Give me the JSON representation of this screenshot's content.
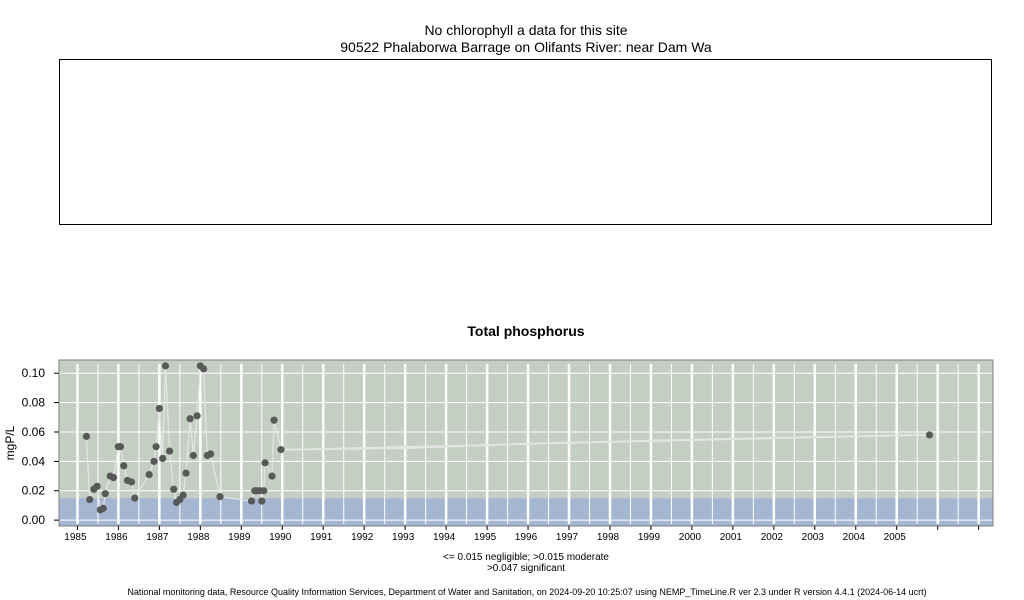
{
  "header": {
    "line1": "No chlorophyll a  data for this site",
    "line2": "90522 Phalaborwa Barrage on Olifants River: near Dam Wa"
  },
  "chart_data": {
    "type": "scatter",
    "title": "Total phosphorus",
    "ylabel": "mgP/L",
    "xlabel": "",
    "xlim": [
      1984.55,
      2007.35
    ],
    "ylim": [
      -0.004,
      0.109
    ],
    "yticks": [
      0.0,
      0.02,
      0.04,
      0.06,
      0.08,
      0.1
    ],
    "ytick_labels": [
      "0.00",
      "0.02",
      "0.04",
      "0.06",
      "0.08",
      "0.10"
    ],
    "xtick_labels": [
      "1985",
      "1986",
      "1987",
      "1988",
      "1989",
      "1990",
      "1991",
      "1992",
      "1993",
      "1994",
      "1995",
      "1996",
      "1997",
      "1998",
      "1999",
      "2000",
      "2001",
      "2002",
      "2003",
      "2004",
      "2005"
    ],
    "grid": true,
    "bands": [
      {
        "label": "negligible",
        "from": -0.004,
        "to": 0.015,
        "color": "#a5b6d3"
      },
      {
        "label": "moderate/significant",
        "from": 0.015,
        "to": 0.109,
        "color": "#c4ceC2"
      }
    ],
    "series": [
      {
        "points": [
          [
            1985.22,
            0.057
          ],
          [
            1985.3,
            0.014
          ],
          [
            1985.4,
            0.021
          ],
          [
            1985.48,
            0.023
          ],
          [
            1985.56,
            0.007
          ],
          [
            1985.63,
            0.008
          ],
          [
            1985.68,
            0.018
          ],
          [
            1985.8,
            0.03
          ],
          [
            1985.88,
            0.029
          ],
          [
            1986.0,
            0.05
          ],
          [
            1986.05,
            0.05
          ],
          [
            1986.13,
            0.037
          ],
          [
            1986.22,
            0.027
          ],
          [
            1986.32,
            0.026
          ],
          [
            1986.4,
            0.015
          ],
          [
            1986.75,
            0.031
          ],
          [
            1986.87,
            0.04
          ],
          [
            1986.92,
            0.05
          ],
          [
            1987.0,
            0.076
          ],
          [
            1987.08,
            0.042
          ],
          [
            1987.15,
            0.105
          ],
          [
            1987.25,
            0.047
          ],
          [
            1987.35,
            0.021
          ],
          [
            1987.42,
            0.012
          ],
          [
            1987.5,
            0.014
          ],
          [
            1987.58,
            0.017
          ],
          [
            1987.65,
            0.032
          ],
          [
            1987.75,
            0.069
          ],
          [
            1987.83,
            0.044
          ],
          [
            1987.92,
            0.071
          ],
          [
            1988.0,
            0.105
          ],
          [
            1988.08,
            0.103
          ],
          [
            1988.17,
            0.044
          ],
          [
            1988.25,
            0.045
          ],
          [
            1988.48,
            0.016
          ],
          [
            1989.25,
            0.013
          ],
          [
            1989.33,
            0.02
          ],
          [
            1989.38,
            0.02
          ],
          [
            1989.45,
            0.02
          ],
          [
            1989.5,
            0.013
          ],
          [
            1989.55,
            0.02
          ],
          [
            1989.58,
            0.039
          ],
          [
            1989.75,
            0.03
          ],
          [
            1989.8,
            0.068
          ],
          [
            1989.97,
            0.048
          ],
          [
            2005.8,
            0.058
          ]
        ],
        "trend": [
          [
            1990.0,
            0.048
          ],
          [
            1993.0,
            0.049
          ],
          [
            1996.0,
            0.052
          ],
          [
            1999.0,
            0.054
          ],
          [
            2002.0,
            0.056
          ],
          [
            2005.8,
            0.058
          ]
        ]
      }
    ]
  },
  "legend": {
    "line1": "<= 0.015 negligible; >0.015 moderate",
    "line2": ">0.047 significant"
  },
  "footer": {
    "text": "National monitoring data, Resource Quality Information Services, Department of Water and Sanitation, on 2024-09-20 10:25:07 using NEMP_TimeLine.R ver 2.3 under R version 4.4.1 (2024-06-14 ucrt)"
  }
}
